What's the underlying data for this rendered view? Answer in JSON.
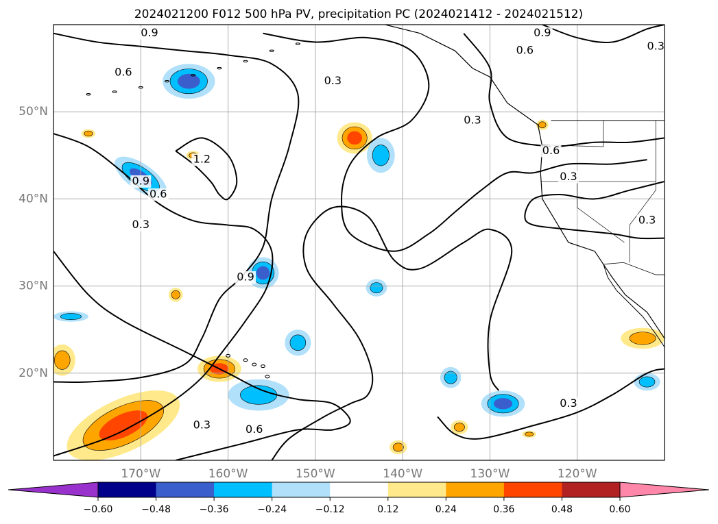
{
  "chart_data": {
    "type": "map",
    "title": "2024021200 F012 500 hPa PV, precipitation PC (2024021412 - 2024021512)",
    "lon_range": [
      -180,
      -110
    ],
    "lat_range": [
      10,
      60
    ],
    "lon_ticks": [
      {
        "value": -170,
        "label": "170°W"
      },
      {
        "value": -160,
        "label": "160°W"
      },
      {
        "value": -150,
        "label": "150°W"
      },
      {
        "value": -140,
        "label": "140°W"
      },
      {
        "value": -130,
        "label": "130°W"
      },
      {
        "value": -120,
        "label": "120°W"
      }
    ],
    "lat_ticks": [
      {
        "value": 20,
        "label": "20°N"
      },
      {
        "value": 30,
        "label": "30°N"
      },
      {
        "value": 40,
        "label": "40°N"
      },
      {
        "value": 50,
        "label": "50°N"
      }
    ],
    "grid": true,
    "colorbar": {
      "orientation": "horizontal",
      "extend": "both",
      "levels": [
        -0.6,
        -0.48,
        -0.36,
        -0.24,
        -0.12,
        0.12,
        0.24,
        0.36,
        0.48,
        0.6
      ],
      "tick_labels": [
        "−0.60",
        "−0.48",
        "−0.36",
        "−0.24",
        "−0.12",
        "0.12",
        "0.24",
        "0.36",
        "0.48",
        "0.60"
      ],
      "colors": [
        "#9932cc",
        "#00008b",
        "#3a5fcd",
        "#00bfff",
        "#b0e0fa",
        "#ffffff",
        "#ffe98a",
        "#ffa500",
        "#ff4500",
        "#b22222",
        "#ff88aa"
      ]
    },
    "pv_contour_labels": [
      {
        "text": "0.9",
        "lon": -158,
        "lat": 31.0
      },
      {
        "text": "0.9",
        "lon": -170.0,
        "lat": 42.0
      },
      {
        "text": "0.6",
        "lon": -168.0,
        "lat": 40.5
      },
      {
        "text": "0.3",
        "lon": -170.0,
        "lat": 37.0
      },
      {
        "text": "1.2",
        "lon": -163.0,
        "lat": 44.5
      },
      {
        "text": "0.6",
        "lon": -172.0,
        "lat": 54.5
      },
      {
        "text": "0.9",
        "lon": -169.0,
        "lat": 59.0
      },
      {
        "text": "0.3",
        "lon": -148.0,
        "lat": 53.5
      },
      {
        "text": "0.3",
        "lon": -132.0,
        "lat": 49.0
      },
      {
        "text": "0.9",
        "lon": -124.0,
        "lat": 59.0
      },
      {
        "text": "0.6",
        "lon": -126.0,
        "lat": 57.0
      },
      {
        "text": "0.3",
        "lon": -111.0,
        "lat": 57.5
      },
      {
        "text": "0.6",
        "lon": -123.0,
        "lat": 45.5
      },
      {
        "text": "0.3",
        "lon": -121.0,
        "lat": 42.5
      },
      {
        "text": "0.3",
        "lon": -112.0,
        "lat": 37.5
      },
      {
        "text": "0.3",
        "lon": -163.0,
        "lat": 14.0
      },
      {
        "text": "0.6",
        "lon": -157.0,
        "lat": 13.5
      },
      {
        "text": "0.3",
        "lon": -121.0,
        "lat": 16.5
      }
    ],
    "precip_blobs": [
      {
        "lon": -164.5,
        "lat": 53.5,
        "rx": 3.0,
        "ry": 2.0,
        "level": -0.36
      },
      {
        "lon": -170.0,
        "lat": 42.5,
        "rx": 3.5,
        "ry": 1.5,
        "level": -0.36,
        "angle": 35
      },
      {
        "lon": -156.0,
        "lat": 31.5,
        "rx": 1.8,
        "ry": 1.8,
        "level": -0.36
      },
      {
        "lon": -145.5,
        "lat": 47.0,
        "rx": 2.0,
        "ry": 1.8,
        "level": 0.36
      },
      {
        "lon": -142.5,
        "lat": 45.0,
        "rx": 1.6,
        "ry": 2.0,
        "level": -0.24
      },
      {
        "lon": -143.0,
        "lat": 29.8,
        "rx": 1.2,
        "ry": 1.0,
        "level": -0.24
      },
      {
        "lon": -164.0,
        "lat": 45.0,
        "rx": 0.8,
        "ry": 0.5,
        "level": 0.24
      },
      {
        "lon": -176.0,
        "lat": 47.5,
        "rx": 0.8,
        "ry": 0.5,
        "level": 0.24
      },
      {
        "lon": -166.0,
        "lat": 29.0,
        "rx": 0.8,
        "ry": 0.8,
        "level": 0.24
      },
      {
        "lon": -178.0,
        "lat": 26.5,
        "rx": 2.0,
        "ry": 0.6,
        "level": -0.24
      },
      {
        "lon": -179.0,
        "lat": 21.5,
        "rx": 1.5,
        "ry": 1.8,
        "level": 0.24
      },
      {
        "lon": -161.0,
        "lat": 20.5,
        "rx": 2.5,
        "ry": 1.5,
        "level": 0.36
      },
      {
        "lon": -156.5,
        "lat": 17.5,
        "rx": 3.5,
        "ry": 1.8,
        "level": -0.24
      },
      {
        "lon": -152.0,
        "lat": 23.5,
        "rx": 1.5,
        "ry": 1.5,
        "level": -0.24
      },
      {
        "lon": -172.0,
        "lat": 14.0,
        "rx": 7.0,
        "ry": 3.0,
        "level": 0.36,
        "angle": -25
      },
      {
        "lon": -134.5,
        "lat": 19.5,
        "rx": 1.2,
        "ry": 1.2,
        "level": -0.24
      },
      {
        "lon": -128.5,
        "lat": 16.5,
        "rx": 2.5,
        "ry": 1.5,
        "level": -0.36
      },
      {
        "lon": -133.5,
        "lat": 13.8,
        "rx": 1.0,
        "ry": 0.8,
        "level": 0.24
      },
      {
        "lon": -125.5,
        "lat": 13.0,
        "rx": 0.8,
        "ry": 0.4,
        "level": 0.24
      },
      {
        "lon": -140.5,
        "lat": 11.5,
        "rx": 1.0,
        "ry": 0.8,
        "level": 0.24
      },
      {
        "lon": -112.5,
        "lat": 24.0,
        "rx": 2.5,
        "ry": 1.2,
        "level": 0.24
      },
      {
        "lon": -112.0,
        "lat": 19.0,
        "rx": 1.5,
        "ry": 1.0,
        "level": -0.24
      },
      {
        "lon": -124.0,
        "lat": 48.5,
        "rx": 0.7,
        "ry": 0.6,
        "level": 0.24
      }
    ],
    "pv_contours": [
      {
        "level": 0.3,
        "points": [
          [
            -180,
            47.5
          ],
          [
            -176,
            46
          ],
          [
            -172,
            43
          ],
          [
            -168,
            39.5
          ],
          [
            -164,
            37.5
          ],
          [
            -160,
            37
          ],
          [
            -157,
            36.5
          ],
          [
            -155,
            34
          ],
          [
            -155.5,
            30
          ],
          [
            -158,
            26
          ],
          [
            -161,
            22
          ],
          [
            -163,
            19.5
          ],
          [
            -166,
            17
          ],
          [
            -170,
            14.5
          ],
          [
            -174,
            12.5
          ],
          [
            -180,
            10.5
          ]
        ]
      },
      {
        "level": 0.9,
        "points": [
          [
            -180,
            59
          ],
          [
            -175,
            58
          ],
          [
            -170,
            57.5
          ],
          [
            -165,
            57
          ],
          [
            -160,
            56.5
          ],
          [
            -155,
            55.5
          ],
          [
            -152,
            52
          ],
          [
            -153,
            46
          ],
          [
            -155,
            40
          ],
          [
            -156,
            34.5
          ],
          [
            -158.5,
            31
          ],
          [
            -161,
            28.5
          ],
          [
            -163,
            24
          ],
          [
            -165,
            21
          ],
          [
            -170,
            19.5
          ],
          [
            -176,
            19
          ],
          [
            -180,
            19
          ]
        ]
      },
      {
        "level": 1.2,
        "points": [
          [
            -166,
            45.5
          ],
          [
            -164,
            44
          ],
          [
            -162,
            42
          ],
          [
            -161,
            40.5
          ],
          [
            -160,
            40
          ],
          [
            -159,
            42
          ],
          [
            -160,
            45
          ],
          [
            -163,
            47
          ],
          [
            -166,
            45.5
          ]
        ]
      },
      {
        "level": 0.3,
        "points": [
          [
            -156,
            59
          ],
          [
            -150,
            58
          ],
          [
            -144,
            58.5
          ],
          [
            -139,
            57
          ],
          [
            -137,
            53
          ],
          [
            -139,
            49
          ],
          [
            -143,
            47
          ],
          [
            -146,
            44
          ],
          [
            -147,
            40
          ],
          [
            -146,
            36
          ],
          [
            -141,
            34
          ],
          [
            -137,
            36
          ],
          [
            -134,
            38.5
          ],
          [
            -131,
            41
          ],
          [
            -128,
            43
          ],
          [
            -125,
            43
          ],
          [
            -121,
            44
          ],
          [
            -116,
            44
          ],
          [
            -112,
            44.5
          ]
        ]
      },
      {
        "level": 0.3,
        "points": [
          [
            -180,
            34
          ],
          [
            -176,
            29
          ],
          [
            -172,
            26
          ],
          [
            -165,
            22.5
          ],
          [
            -160,
            20
          ],
          [
            -156,
            18
          ],
          [
            -152,
            17
          ],
          [
            -148,
            16.5
          ],
          [
            -146,
            14.5
          ],
          [
            -148,
            13.5
          ],
          [
            -152,
            13.5
          ],
          [
            -158,
            12
          ],
          [
            -162,
            11
          ],
          [
            -166,
            10
          ]
        ]
      },
      {
        "level": 0.6,
        "points": [
          [
            -155,
            10
          ],
          [
            -153,
            12.5
          ],
          [
            -149,
            15
          ],
          [
            -146,
            16.5
          ],
          [
            -144,
            17.5
          ],
          [
            -143.5,
            20
          ],
          [
            -145,
            24
          ],
          [
            -148,
            28
          ],
          [
            -151,
            32
          ],
          [
            -151,
            36
          ],
          [
            -148,
            39
          ],
          [
            -144,
            38
          ],
          [
            -141,
            33
          ],
          [
            -138,
            32
          ],
          [
            -133,
            35
          ],
          [
            -130,
            36.5
          ],
          [
            -127.5,
            34
          ],
          [
            -130,
            26
          ],
          [
            -130,
            20
          ],
          [
            -129,
            18
          ]
        ]
      },
      {
        "level": 0.3,
        "points": [
          [
            -136,
            15
          ],
          [
            -134,
            13
          ],
          [
            -131,
            12.5
          ],
          [
            -125,
            14
          ],
          [
            -120,
            15.5
          ],
          [
            -116,
            17.5
          ],
          [
            -112,
            20
          ],
          [
            -110,
            20.5
          ]
        ]
      },
      {
        "level": 0.6,
        "points": [
          [
            -124,
            60
          ],
          [
            -120,
            58.5
          ],
          [
            -116,
            58
          ],
          [
            -112,
            59.5
          ],
          [
            -110,
            60
          ]
        ]
      },
      {
        "level": 0.6,
        "points": [
          [
            -122,
            46
          ],
          [
            -118,
            46.5
          ],
          [
            -114,
            46.5
          ],
          [
            -110,
            47
          ]
        ]
      },
      {
        "level": 0.3,
        "points": [
          [
            -110,
            42
          ],
          [
            -114,
            41
          ],
          [
            -118,
            40
          ],
          [
            -122,
            40.5
          ],
          [
            -125,
            40
          ],
          [
            -126,
            38
          ],
          [
            -125,
            37
          ],
          [
            -121,
            36.5
          ],
          [
            -116,
            36
          ],
          [
            -113,
            35.5
          ],
          [
            -110,
            35.5
          ]
        ]
      },
      {
        "level": 0.9,
        "points": [
          [
            -133,
            59
          ],
          [
            -130,
            55
          ],
          [
            -130,
            51
          ],
          [
            -128,
            47
          ],
          [
            -123,
            46
          ]
        ]
      }
    ]
  }
}
